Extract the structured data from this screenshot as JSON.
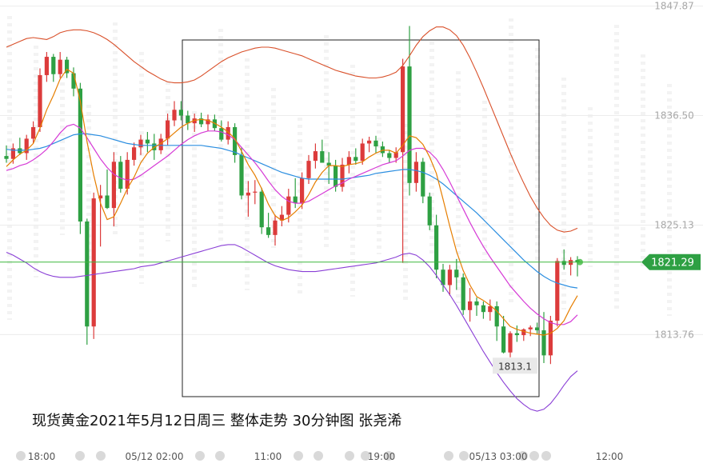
{
  "colors": {
    "up": "#dc3b3b",
    "down": "#2ea043",
    "ma_fast": "#e67e00",
    "ma_mid": "#d63bd6",
    "ma_slow": "#2b8ee0",
    "band": "#8a3fd6",
    "band_upper": "#d9502a",
    "current_line": "#3cb83c",
    "price_label_bg": "#2ea043"
  },
  "caption": "现货黄金2021年5月12日周三  整体走势  30分钟图  张尧浠",
  "current_price_label": "1821.29",
  "low_label": "1813.1",
  "chart_data": {
    "type": "candlestick",
    "y_ticks": [
      "1847.87",
      "1836.50",
      "1825.13",
      "1813.76"
    ],
    "x_ticks": [
      "18:00",
      "05/12 02:00",
      "11:00",
      "19:00",
      "05/13 03:00",
      "12:00"
    ],
    "ylim": [
      1802,
      1848.5
    ],
    "current_price": 1821.29,
    "annotations": [
      {
        "text": "1813.1",
        "value": 1813.1
      }
    ],
    "candles": [
      [
        1832.3,
        1833.4,
        1831.6,
        1832.0
      ],
      [
        1832.0,
        1833.6,
        1831.5,
        1833.1
      ],
      [
        1833.1,
        1834.2,
        1832.4,
        1832.6
      ],
      [
        1832.6,
        1834.5,
        1831.9,
        1834.1
      ],
      [
        1834.1,
        1835.9,
        1833.6,
        1835.3
      ],
      [
        1835.3,
        1841.4,
        1834.8,
        1840.7
      ],
      [
        1840.7,
        1843.1,
        1840.0,
        1842.6
      ],
      [
        1842.6,
        1842.9,
        1840.0,
        1840.8
      ],
      [
        1840.8,
        1843.1,
        1840.4,
        1842.3
      ],
      [
        1842.3,
        1842.6,
        1840.4,
        1840.9
      ],
      [
        1840.9,
        1841.5,
        1838.5,
        1839.3
      ],
      [
        1839.3,
        1839.9,
        1824.2,
        1825.5
      ],
      [
        1825.5,
        1825.8,
        1812.7,
        1814.6
      ],
      [
        1814.6,
        1828.5,
        1813.3,
        1827.9
      ],
      [
        1827.9,
        1829.3,
        1822.9,
        1828.2
      ],
      [
        1828.2,
        1830.9,
        1826.8,
        1826.9
      ],
      [
        1826.9,
        1832.7,
        1825.0,
        1831.7
      ],
      [
        1831.7,
        1832.3,
        1828.5,
        1828.9
      ],
      [
        1828.9,
        1832.7,
        1828.3,
        1831.9
      ],
      [
        1831.9,
        1833.7,
        1831.3,
        1833.2
      ],
      [
        1833.2,
        1834.5,
        1832.4,
        1834.0
      ],
      [
        1834.0,
        1834.8,
        1832.7,
        1833.6
      ],
      [
        1833.6,
        1834.6,
        1831.9,
        1832.9
      ],
      [
        1832.9,
        1834.6,
        1832.5,
        1834.1
      ],
      [
        1834.1,
        1836.7,
        1833.4,
        1836.0
      ],
      [
        1836.0,
        1838.0,
        1835.4,
        1837.1
      ],
      [
        1837.1,
        1838.0,
        1836.0,
        1836.5
      ],
      [
        1836.5,
        1837.0,
        1835.0,
        1835.7
      ],
      [
        1835.7,
        1836.7,
        1834.8,
        1836.2
      ],
      [
        1836.2,
        1836.8,
        1835.3,
        1835.6
      ],
      [
        1835.6,
        1836.6,
        1834.9,
        1836.1
      ],
      [
        1836.1,
        1836.6,
        1834.9,
        1835.2
      ],
      [
        1835.2,
        1836.0,
        1833.8,
        1834.0
      ],
      [
        1834.0,
        1835.9,
        1833.5,
        1835.3
      ],
      [
        1835.3,
        1835.7,
        1831.6,
        1832.4
      ],
      [
        1832.4,
        1833.2,
        1827.8,
        1828.2
      ],
      [
        1828.2,
        1829.7,
        1826.0,
        1828.5
      ],
      [
        1828.5,
        1829.8,
        1827.3,
        1828.6
      ],
      [
        1828.6,
        1829.0,
        1824.2,
        1824.9
      ],
      [
        1824.9,
        1826.4,
        1823.8,
        1824.1
      ],
      [
        1824.1,
        1826.2,
        1823.0,
        1825.6
      ],
      [
        1825.6,
        1827.1,
        1825.0,
        1826.2
      ],
      [
        1826.2,
        1828.9,
        1825.4,
        1828.1
      ],
      [
        1828.1,
        1830.0,
        1826.9,
        1827.4
      ],
      [
        1827.4,
        1830.6,
        1826.8,
        1830.0
      ],
      [
        1830.0,
        1832.4,
        1829.4,
        1831.8
      ],
      [
        1831.8,
        1833.6,
        1831.0,
        1832.8
      ],
      [
        1832.8,
        1834.0,
        1832.0,
        1831.6
      ],
      [
        1831.6,
        1832.7,
        1829.4,
        1831.3
      ],
      [
        1831.3,
        1831.9,
        1828.6,
        1829.1
      ],
      [
        1829.1,
        1832.1,
        1828.6,
        1831.4
      ],
      [
        1831.4,
        1832.8,
        1830.5,
        1832.2
      ],
      [
        1832.2,
        1833.1,
        1831.4,
        1831.8
      ],
      [
        1831.8,
        1834.1,
        1831.4,
        1833.6
      ],
      [
        1833.6,
        1834.3,
        1832.7,
        1833.9
      ],
      [
        1833.9,
        1834.4,
        1832.6,
        1833.3
      ],
      [
        1833.3,
        1833.8,
        1832.2,
        1832.6
      ],
      [
        1832.6,
        1832.9,
        1831.6,
        1832.1
      ],
      [
        1832.1,
        1833.2,
        1831.6,
        1832.7
      ],
      [
        1832.7,
        1842.4,
        1821.2,
        1841.6
      ],
      [
        1841.6,
        1845.8,
        1828.2,
        1829.5
      ],
      [
        1829.5,
        1832.7,
        1828.6,
        1831.7
      ],
      [
        1831.7,
        1832.1,
        1827.4,
        1828.1
      ],
      [
        1828.1,
        1828.5,
        1824.6,
        1825.1
      ],
      [
        1825.1,
        1826.2,
        1819.6,
        1820.5
      ],
      [
        1820.5,
        1821.1,
        1818.2,
        1818.9
      ],
      [
        1818.9,
        1821.0,
        1817.8,
        1820.5
      ],
      [
        1820.5,
        1821.6,
        1818.4,
        1819.7
      ],
      [
        1819.7,
        1820.1,
        1815.8,
        1816.3
      ],
      [
        1816.3,
        1818.6,
        1815.1,
        1817.2
      ],
      [
        1817.2,
        1817.6,
        1815.7,
        1816.8
      ],
      [
        1816.8,
        1817.2,
        1815.4,
        1816.1
      ],
      [
        1816.1,
        1817.4,
        1815.2,
        1816.7
      ],
      [
        1816.7,
        1817.2,
        1813.1,
        1814.6
      ],
      [
        1814.6,
        1815.7,
        1811.8,
        1811.9
      ],
      [
        1811.9,
        1814.1,
        1811.4,
        1813.9
      ],
      [
        1813.9,
        1814.7,
        1813.0,
        1813.7
      ],
      [
        1813.7,
        1814.4,
        1813.1,
        1814.3
      ],
      [
        1814.3,
        1814.7,
        1813.6,
        1814.5
      ],
      [
        1814.5,
        1815.0,
        1813.8,
        1814.2
      ],
      [
        1814.2,
        1816.1,
        1810.8,
        1811.6
      ],
      [
        1811.6,
        1815.7,
        1810.7,
        1815.2
      ],
      [
        1815.2,
        1821.7,
        1814.6,
        1821.4
      ],
      [
        1821.4,
        1822.6,
        1820.5,
        1821.0
      ],
      [
        1821.0,
        1821.8,
        1819.9,
        1821.5
      ],
      [
        1821.5,
        1821.9,
        1819.8,
        1821.3
      ]
    ],
    "ma_fast": [
      1831.2,
      1831.9,
      1832.5,
      1832.9,
      1833.6,
      1835.2,
      1837.1,
      1838.6,
      1840.3,
      1841.3,
      1840.9,
      1838.0,
      1833.8,
      1830.3,
      1827.4,
      1825.7,
      1826.0,
      1827.4,
      1828.9,
      1830.1,
      1831.6,
      1832.6,
      1833.2,
      1833.6,
      1834.1,
      1834.7,
      1835.3,
      1835.7,
      1836.0,
      1836.1,
      1836.0,
      1835.7,
      1835.3,
      1834.8,
      1834.1,
      1832.8,
      1831.4,
      1830.3,
      1828.9,
      1827.3,
      1826.1,
      1825.6,
      1825.9,
      1826.5,
      1827.2,
      1828.3,
      1829.6,
      1830.6,
      1831.3,
      1831.3,
      1831.2,
      1831.4,
      1831.5,
      1831.7,
      1832.2,
      1832.6,
      1832.9,
      1832.9,
      1832.6,
      1833.4,
      1834.4,
      1834.2,
      1833.5,
      1832.2,
      1830.5,
      1827.8,
      1825.0,
      1822.4,
      1820.4,
      1818.9,
      1817.7,
      1817.3,
      1816.8,
      1816.2,
      1815.4,
      1814.6,
      1814.3,
      1814.1,
      1813.9,
      1813.8,
      1813.7,
      1813.9,
      1814.4,
      1815.2,
      1816.6,
      1817.8
    ],
    "ma_mid": [
      1830.8,
      1831.0,
      1831.3,
      1831.5,
      1831.9,
      1832.4,
      1833.0,
      1833.8,
      1834.7,
      1835.4,
      1835.6,
      1835.2,
      1834.2,
      1833.1,
      1832.0,
      1831.1,
      1830.4,
      1830.0,
      1829.8,
      1829.9,
      1830.3,
      1830.8,
      1831.3,
      1831.8,
      1832.3,
      1832.9,
      1833.5,
      1834.0,
      1834.4,
      1834.7,
      1834.9,
      1834.9,
      1834.8,
      1834.5,
      1834.0,
      1833.2,
      1832.4,
      1831.6,
      1830.7,
      1829.7,
      1828.8,
      1828.1,
      1827.6,
      1827.4,
      1827.4,
      1827.6,
      1828.0,
      1828.4,
      1828.8,
      1829.2,
      1829.5,
      1829.9,
      1830.2,
      1830.5,
      1830.8,
      1831.1,
      1831.4,
      1831.6,
      1831.8,
      1832.3,
      1832.9,
      1833.1,
      1833.1,
      1832.7,
      1832.0,
      1830.9,
      1829.6,
      1828.2,
      1826.8,
      1825.4,
      1824.1,
      1822.9,
      1821.8,
      1820.8,
      1819.8,
      1818.8,
      1818.0,
      1817.2,
      1816.5,
      1815.9,
      1815.4,
      1815.0,
      1814.8,
      1814.8,
      1815.1,
      1815.8
    ],
    "ma_slow": [
      1833.0,
      1832.9,
      1832.9,
      1832.9,
      1833.0,
      1833.1,
      1833.3,
      1833.6,
      1833.9,
      1834.2,
      1834.5,
      1834.6,
      1834.6,
      1834.5,
      1834.4,
      1834.2,
      1834.0,
      1833.8,
      1833.6,
      1833.5,
      1833.4,
      1833.4,
      1833.4,
      1833.4,
      1833.4,
      1833.4,
      1833.4,
      1833.4,
      1833.4,
      1833.4,
      1833.3,
      1833.2,
      1833.1,
      1832.9,
      1832.7,
      1832.4,
      1832.1,
      1831.8,
      1831.5,
      1831.2,
      1830.9,
      1830.6,
      1830.4,
      1830.2,
      1830.0,
      1829.9,
      1829.9,
      1829.9,
      1829.9,
      1829.9,
      1829.9,
      1830.0,
      1830.1,
      1830.2,
      1830.3,
      1830.5,
      1830.6,
      1830.7,
      1830.8,
      1830.9,
      1830.9,
      1830.8,
      1830.6,
      1830.3,
      1829.9,
      1829.4,
      1828.8,
      1828.2,
      1827.6,
      1827.0,
      1826.4,
      1825.7,
      1825.0,
      1824.3,
      1823.6,
      1822.9,
      1822.2,
      1821.5,
      1820.9,
      1820.3,
      1819.8,
      1819.4,
      1819.1,
      1818.9,
      1818.7,
      1818.6
    ],
    "band_upper": [
      1843.6,
      1843.9,
      1844.2,
      1844.5,
      1844.6,
      1844.5,
      1844.4,
      1844.7,
      1845.1,
      1845.3,
      1845.4,
      1845.4,
      1845.3,
      1845.1,
      1844.8,
      1844.4,
      1843.9,
      1843.3,
      1842.7,
      1842.1,
      1841.6,
      1841.1,
      1840.7,
      1840.3,
      1840.0,
      1839.9,
      1839.9,
      1840.0,
      1840.2,
      1840.6,
      1841.1,
      1841.6,
      1842.1,
      1842.5,
      1842.8,
      1843.1,
      1843.3,
      1843.5,
      1843.6,
      1843.6,
      1843.5,
      1843.3,
      1843.1,
      1842.9,
      1842.7,
      1842.4,
      1842.1,
      1841.8,
      1841.5,
      1841.2,
      1841.0,
      1840.8,
      1840.6,
      1840.5,
      1840.4,
      1840.4,
      1840.5,
      1840.7,
      1841.0,
      1841.7,
      1842.7,
      1843.8,
      1844.7,
      1845.3,
      1845.7,
      1845.7,
      1845.4,
      1844.8,
      1843.8,
      1842.5,
      1841.0,
      1839.4,
      1837.7,
      1836.0,
      1834.3,
      1832.6,
      1831.0,
      1829.5,
      1828.1,
      1826.9,
      1825.9,
      1825.1,
      1824.6,
      1824.4,
      1824.5,
      1824.8
    ],
    "band": [
      1822.3,
      1822.0,
      1821.6,
      1821.2,
      1820.7,
      1820.3,
      1820.0,
      1819.8,
      1819.7,
      1819.7,
      1819.7,
      1819.8,
      1819.9,
      1820.0,
      1820.1,
      1820.2,
      1820.3,
      1820.4,
      1820.5,
      1820.6,
      1820.8,
      1820.9,
      1821.0,
      1821.2,
      1821.4,
      1821.6,
      1821.8,
      1822.0,
      1822.2,
      1822.4,
      1822.6,
      1822.8,
      1823.0,
      1823.1,
      1823.1,
      1822.8,
      1822.4,
      1822.0,
      1821.6,
      1821.2,
      1820.9,
      1820.7,
      1820.5,
      1820.4,
      1820.3,
      1820.3,
      1820.3,
      1820.4,
      1820.5,
      1820.6,
      1820.7,
      1820.8,
      1820.9,
      1821.0,
      1821.1,
      1821.2,
      1821.4,
      1821.6,
      1821.8,
      1822.1,
      1822.2,
      1822.0,
      1821.5,
      1820.8,
      1819.9,
      1818.9,
      1817.9,
      1816.8,
      1815.6,
      1814.4,
      1813.2,
      1812.0,
      1810.9,
      1809.8,
      1808.8,
      1807.9,
      1807.1,
      1806.5,
      1806.0,
      1805.8,
      1806.0,
      1806.6,
      1807.5,
      1808.5,
      1809.4,
      1810.0
    ]
  }
}
